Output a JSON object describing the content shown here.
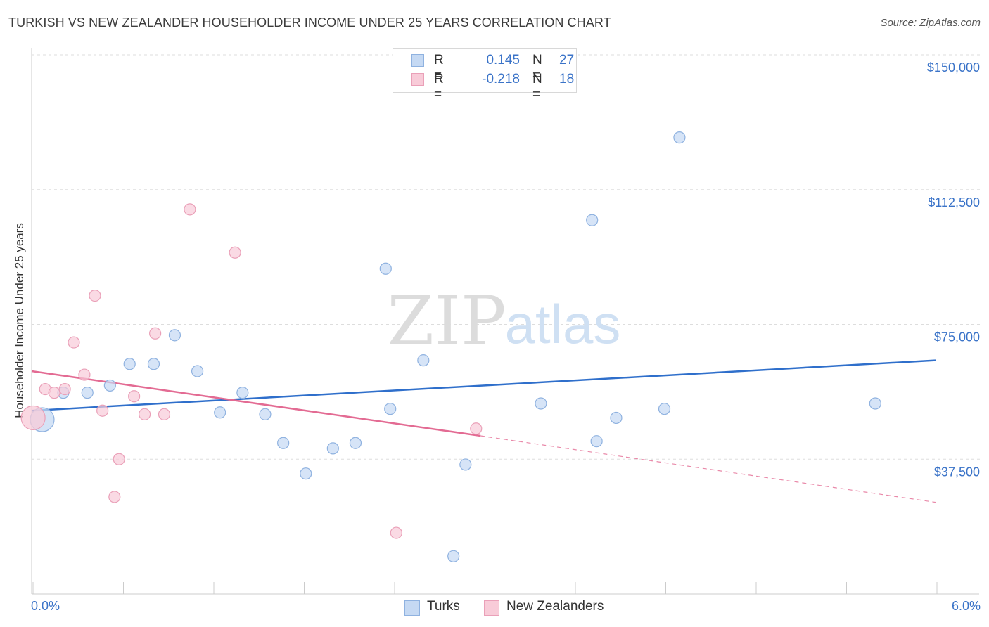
{
  "header": {
    "title": "TURKISH VS NEW ZEALANDER HOUSEHOLDER INCOME UNDER 25 YEARS CORRELATION CHART",
    "source": "Source: ZipAtlas.com"
  },
  "watermark": {
    "zip": "ZIP",
    "atlas": "atlas"
  },
  "legend_top": {
    "rows": [
      {
        "r_label": "R =",
        "r_value": "0.145",
        "n_label": "N =",
        "n_value": "27"
      },
      {
        "r_label": "R =",
        "r_value": "-0.218",
        "n_label": "N =",
        "n_value": "18"
      }
    ]
  },
  "colors": {
    "turks_fill": "#c5d9f3",
    "turks_stroke": "#8fb2e0",
    "turks_line": "#2f6fcb",
    "nz_fill": "#f8cbd8",
    "nz_stroke": "#eaa0b8",
    "nz_line": "#e36b93",
    "axis_text": "#3a73c8",
    "grid": "#dddddd"
  },
  "chart_data": {
    "type": "scatter",
    "title": "TURKISH VS NEW ZEALANDER HOUSEHOLDER INCOME UNDER 25 YEARS CORRELATION CHART",
    "xlabel": "",
    "ylabel": "Householder Income Under 25 years",
    "xlim": [
      0,
      6.0
    ],
    "ylim": [
      0,
      155000
    ],
    "x_tick_labels": [
      "0.0%",
      "6.0%"
    ],
    "y_ticks": [
      37500,
      75000,
      112500,
      150000
    ],
    "y_tick_labels": [
      "$37,500",
      "$75,000",
      "$112,500",
      "$150,000"
    ],
    "grid": true,
    "legend": "bottom-center",
    "series": [
      {
        "name": "Turks",
        "points": [
          [
            0.07,
            48500,
            "large"
          ],
          [
            0.21,
            56000
          ],
          [
            0.37,
            56000
          ],
          [
            0.52,
            58000
          ],
          [
            0.65,
            64000
          ],
          [
            0.81,
            64000
          ],
          [
            0.95,
            72000
          ],
          [
            1.1,
            62000
          ],
          [
            1.25,
            50500
          ],
          [
            1.4,
            56000
          ],
          [
            1.55,
            50000
          ],
          [
            1.67,
            42000
          ],
          [
            1.82,
            33500
          ],
          [
            2.0,
            40500
          ],
          [
            2.15,
            42000
          ],
          [
            2.35,
            90500
          ],
          [
            2.38,
            51500
          ],
          [
            2.6,
            65000
          ],
          [
            2.8,
            10500
          ],
          [
            2.88,
            36000
          ],
          [
            3.38,
            53000
          ],
          [
            3.72,
            104000
          ],
          [
            3.75,
            42500
          ],
          [
            3.88,
            49000
          ],
          [
            4.2,
            51500
          ],
          [
            4.3,
            127000
          ],
          [
            5.6,
            53000
          ]
        ],
        "trend": {
          "x": [
            0.0,
            6.0
          ],
          "y": [
            51000,
            65000
          ]
        }
      },
      {
        "name": "New Zealanders",
        "points": [
          [
            0.01,
            49000,
            "large"
          ],
          [
            0.09,
            57000
          ],
          [
            0.15,
            56000
          ],
          [
            0.22,
            57000
          ],
          [
            0.28,
            70000
          ],
          [
            0.35,
            61000
          ],
          [
            0.42,
            83000
          ],
          [
            0.47,
            51000
          ],
          [
            0.55,
            27000
          ],
          [
            0.58,
            37500
          ],
          [
            0.68,
            55000
          ],
          [
            0.75,
            50000
          ],
          [
            0.82,
            72500
          ],
          [
            0.88,
            50000
          ],
          [
            1.05,
            107000
          ],
          [
            1.35,
            95000
          ],
          [
            2.42,
            17000
          ],
          [
            2.95,
            46000
          ]
        ],
        "trend": {
          "x": [
            0.0,
            2.98
          ],
          "y": [
            62000,
            44000
          ]
        },
        "trend_dashed": {
          "x": [
            2.98,
            6.0
          ],
          "y": [
            44000,
            25500
          ]
        }
      }
    ]
  },
  "bottom_legend": {
    "turks": "Turks",
    "nz": "New Zealanders"
  }
}
